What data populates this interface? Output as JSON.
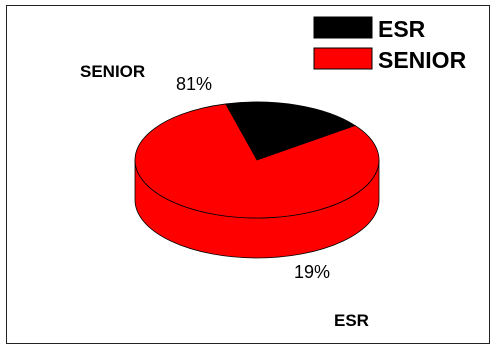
{
  "chart_data": {
    "type": "pie",
    "style": "3d",
    "categories": [
      "ESR",
      "SENIOR"
    ],
    "values": [
      19,
      81
    ],
    "value_labels": [
      "19%",
      "81%"
    ],
    "colors": [
      "#000000",
      "#ff0000"
    ],
    "legend": {
      "placement": "top-right",
      "entries": [
        "ESR",
        "SENIOR"
      ]
    },
    "category_labels": [
      "ESR",
      "SENIOR"
    ]
  }
}
